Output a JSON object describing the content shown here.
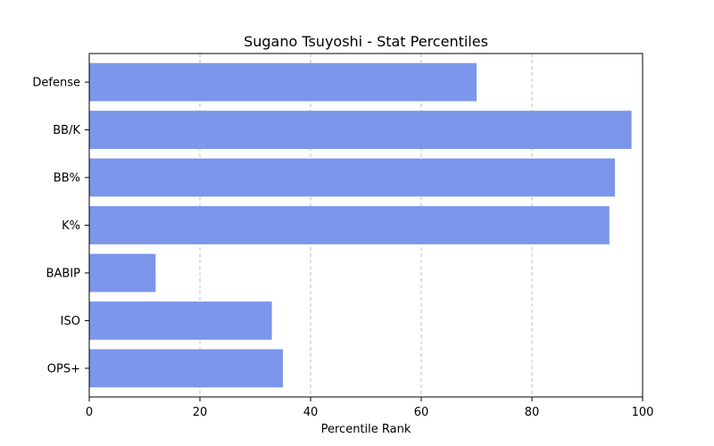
{
  "chart_data": {
    "type": "bar",
    "orientation": "horizontal",
    "title": "Sugano Tsuyoshi - Stat Percentiles",
    "xlabel": "Percentile Rank",
    "ylabel": "",
    "categories": [
      "OPS+",
      "ISO",
      "BABIP",
      "K%",
      "BB%",
      "BB/K",
      "Defense"
    ],
    "values": [
      35,
      33,
      12,
      94,
      95,
      98,
      70
    ],
    "xlim": [
      0,
      100
    ],
    "xticks": [
      0,
      20,
      40,
      60,
      80,
      100
    ],
    "grid": "x-dashed",
    "bar_color": "#7b96ea"
  }
}
